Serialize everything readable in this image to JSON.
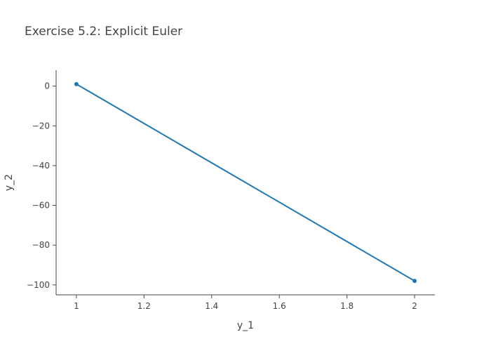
{
  "chart_data": {
    "type": "line",
    "title": "Exercise 5.2: Explicit Euler",
    "xlabel": "y_1",
    "ylabel": "y_2",
    "xlim": [
      0.94,
      2.06
    ],
    "ylim": [
      -105,
      8
    ],
    "xticks": [
      {
        "value": 1,
        "label": "1"
      },
      {
        "value": 1.2,
        "label": "1.2"
      },
      {
        "value": 1.4,
        "label": "1.4"
      },
      {
        "value": 1.6,
        "label": "1.6"
      },
      {
        "value": 1.8,
        "label": "1.8"
      },
      {
        "value": 2,
        "label": "2"
      }
    ],
    "yticks": [
      {
        "value": 0,
        "label": "0"
      },
      {
        "value": -20,
        "label": "−20"
      },
      {
        "value": -40,
        "label": "−40"
      },
      {
        "value": -60,
        "label": "−60"
      },
      {
        "value": -80,
        "label": "−80"
      },
      {
        "value": -100,
        "label": "−100"
      }
    ],
    "grid": false,
    "series": [
      {
        "x": [
          1,
          2
        ],
        "y": [
          1,
          -98
        ],
        "color": "#1f77b4",
        "mode": "lines+markers"
      }
    ]
  }
}
